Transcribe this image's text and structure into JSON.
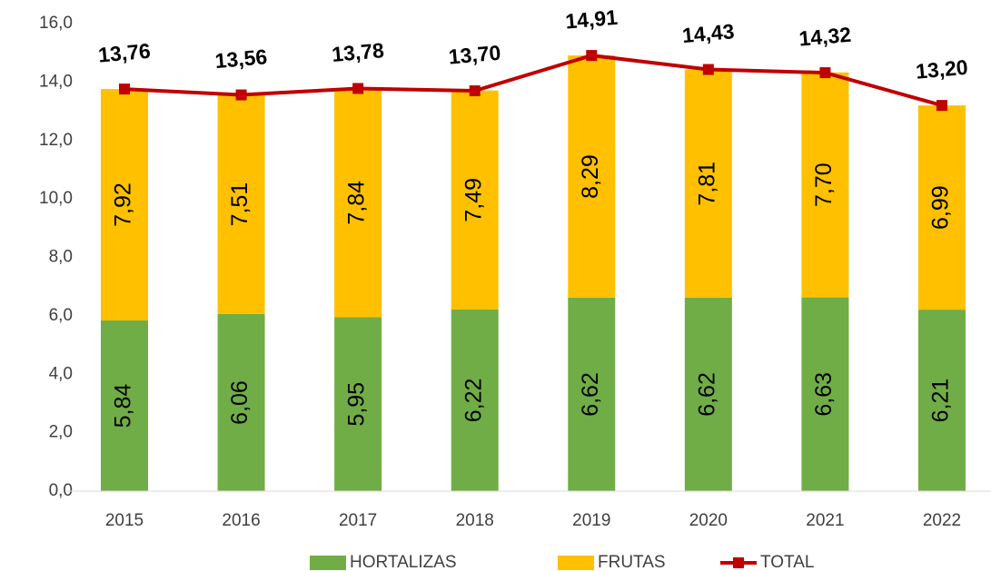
{
  "chart_data": {
    "type": "bar",
    "stacked": true,
    "categories": [
      "2015",
      "2016",
      "2017",
      "2018",
      "2019",
      "2020",
      "2021",
      "2022"
    ],
    "series": [
      {
        "name": "HORTALIZAS",
        "color": "#70ad47",
        "values": [
          5.84,
          6.06,
          5.95,
          6.22,
          6.62,
          6.62,
          6.63,
          6.21
        ],
        "value_labels": [
          "5,84",
          "6,06",
          "5,95",
          "6,22",
          "6,62",
          "6,62",
          "6,63",
          "6,21"
        ]
      },
      {
        "name": "FRUTAS",
        "color": "#ffc000",
        "values": [
          7.92,
          7.51,
          7.84,
          7.49,
          8.29,
          7.81,
          7.7,
          6.99
        ],
        "value_labels": [
          "7,92",
          "7,51",
          "7,84",
          "7,49",
          "8,29",
          "7,81",
          "7,70",
          "6,99"
        ]
      },
      {
        "name": "TOTAL",
        "type": "line",
        "color": "#c00000",
        "values": [
          13.76,
          13.56,
          13.78,
          13.7,
          14.91,
          14.43,
          14.32,
          13.2
        ],
        "value_labels": [
          "13,76",
          "13,56",
          "13,78",
          "13,70",
          "14,91",
          "14,43",
          "14,32",
          "13,20"
        ]
      }
    ],
    "ylim": [
      0,
      16
    ],
    "yticks": [
      {
        "value": 0,
        "label": "0,0"
      },
      {
        "value": 2,
        "label": "2,0"
      },
      {
        "value": 4,
        "label": "4,0"
      },
      {
        "value": 6,
        "label": "6,0"
      },
      {
        "value": 8,
        "label": "8,0"
      },
      {
        "value": 10,
        "label": "10,0"
      },
      {
        "value": 12,
        "label": "12,0"
      },
      {
        "value": 14,
        "label": "14,0"
      },
      {
        "value": 16,
        "label": "16,0"
      }
    ],
    "grid": false,
    "legend": "bottom"
  }
}
